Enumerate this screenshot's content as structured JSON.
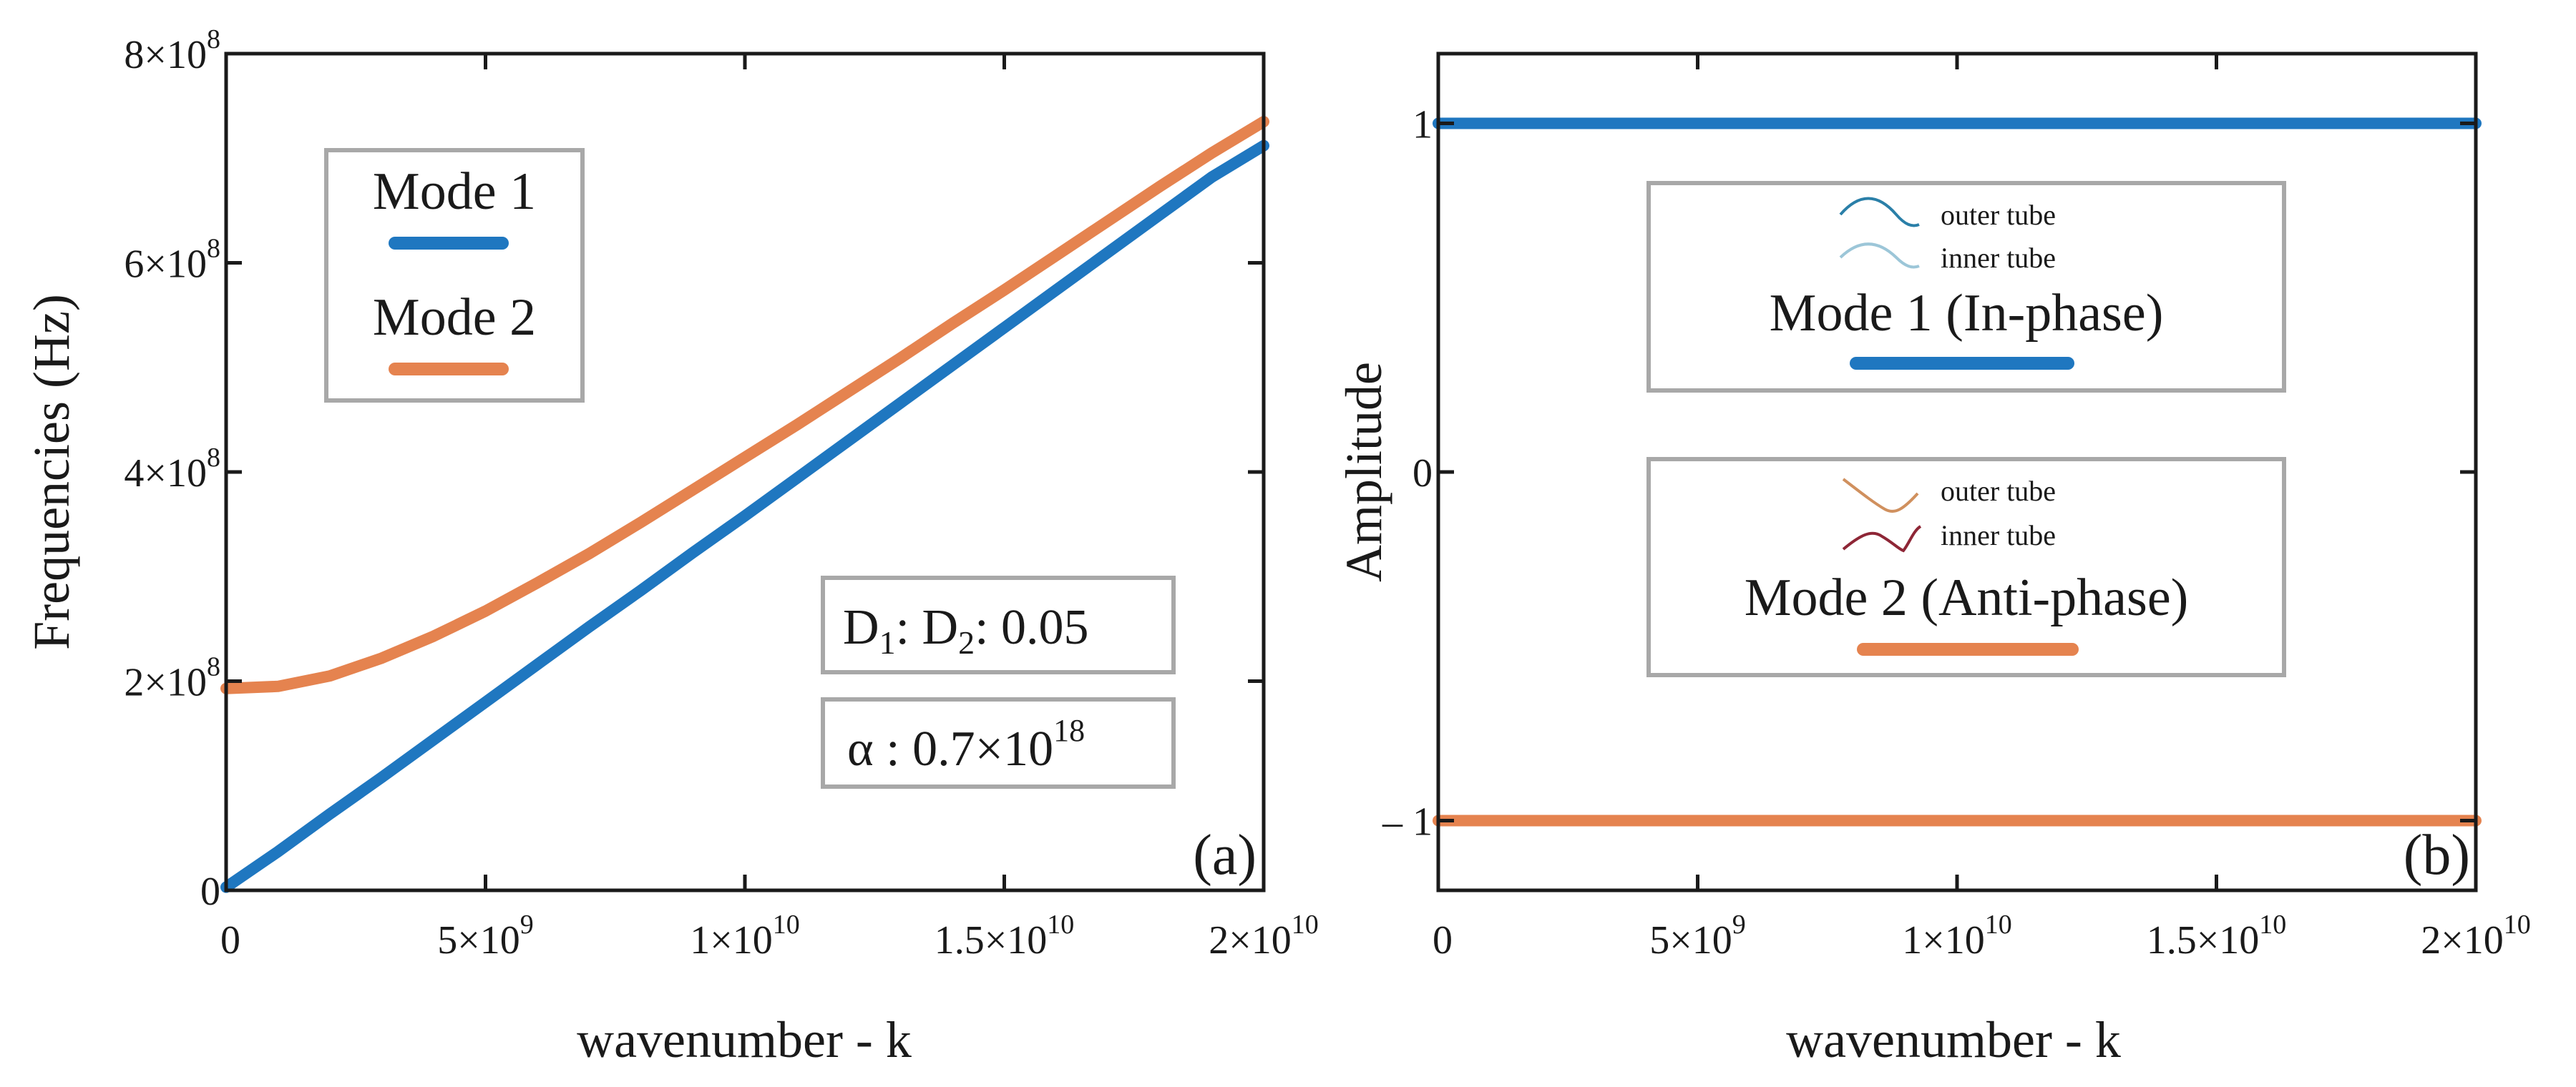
{
  "chart_data": [
    {
      "panel": "(a)",
      "type": "line",
      "xlabel": "wavenumber - k",
      "ylabel": "Frequencies (Hz)",
      "xlim": [
        0,
        20000000000
      ],
      "ylim": [
        0,
        800000000
      ],
      "x_ticks": [
        {
          "value": 0,
          "label": "0"
        },
        {
          "value": 5000000000,
          "label": "5×10",
          "exp": "9"
        },
        {
          "value": 10000000000,
          "label": "1×10",
          "exp": "10"
        },
        {
          "value": 15000000000,
          "label": "1.5×10",
          "exp": "10"
        },
        {
          "value": 20000000000,
          "label": "2×10",
          "exp": "10"
        }
      ],
      "y_ticks": [
        {
          "value": 0,
          "label": "0"
        },
        {
          "value": 200000000,
          "label": "2×10",
          "exp": "8"
        },
        {
          "value": 400000000,
          "label": "4×10",
          "exp": "8"
        },
        {
          "value": 600000000,
          "label": "6×10",
          "exp": "8"
        },
        {
          "value": 800000000,
          "label": "8×10",
          "exp": "8"
        }
      ],
      "x": [
        0,
        1000000000,
        2000000000,
        3000000000,
        4000000000,
        5000000000,
        6000000000,
        7000000000,
        8000000000,
        9000000000,
        10000000000,
        11000000000,
        12000000000,
        13000000000,
        14000000000,
        15000000000,
        16000000000,
        17000000000,
        18000000000,
        19000000000,
        20000000000
      ],
      "series": [
        {
          "name": "Mode 1",
          "color": "#1f77c0",
          "values": [
            3000000,
            37000000,
            73000000,
            108000000,
            144000000,
            180000000,
            216000000,
            252000000,
            287000000,
            323000000,
            358000000,
            394000000,
            430000000,
            466000000,
            502000000,
            538000000,
            574000000,
            610000000,
            646000000,
            682000000,
            712000000
          ]
        },
        {
          "name": "Mode 2",
          "color": "#e5834f",
          "values": [
            193000000,
            195000000,
            205000000,
            222000000,
            243000000,
            267000000,
            294000000,
            322000000,
            352000000,
            383000000,
            414000000,
            445000000,
            477000000,
            509000000,
            542000000,
            574000000,
            607000000,
            640000000,
            673000000,
            705000000,
            735000000
          ]
        }
      ],
      "legend": {
        "placement": "top-left",
        "items": [
          "Mode 1",
          "Mode 2"
        ]
      },
      "annotations": {
        "ratio": {
          "D": "D",
          "sub1": "1",
          "sep": ": D",
          "sub2": "2",
          "value": ": 0.05"
        },
        "alpha": {
          "text": "α :  0.7×10",
          "exp": "18"
        }
      }
    },
    {
      "panel": "(b)",
      "type": "line",
      "xlabel": "wavenumber - k",
      "ylabel": "Amplitude",
      "xlim": [
        0,
        20000000000
      ],
      "ylim": [
        -1.2,
        1.2
      ],
      "x_ticks": [
        {
          "value": 0,
          "label": "0"
        },
        {
          "value": 5000000000,
          "label": "5×10",
          "exp": "9"
        },
        {
          "value": 10000000000,
          "label": "1×10",
          "exp": "10"
        },
        {
          "value": 15000000000,
          "label": "1.5×10",
          "exp": "10"
        },
        {
          "value": 20000000000,
          "label": "2×10",
          "exp": "10"
        }
      ],
      "y_ticks": [
        {
          "value": 1,
          "label": "1"
        },
        {
          "value": 0,
          "label": "0"
        },
        {
          "value": -1,
          "label": "– 1"
        }
      ],
      "x": [
        0,
        20000000000
      ],
      "series": [
        {
          "name": "Mode 1 (In-phase)",
          "color": "#1f77c0",
          "values": [
            1,
            1
          ]
        },
        {
          "name": "Mode 2 (Anti-phase)",
          "color": "#e5834f",
          "values": [
            -1,
            -1
          ]
        }
      ],
      "legends": [
        {
          "title": "Mode 1  (In-phase)",
          "outer": "outer tube",
          "inner": "inner tube",
          "outer_color": "#2a7fa8",
          "inner_color": "#9cc6d8",
          "line_color": "#1f77c0"
        },
        {
          "title": "Mode 2  (Anti-phase)",
          "outer": "outer tube",
          "inner": "inner tube",
          "outer_color": "#d0905e",
          "inner_color": "#8e2636",
          "line_color": "#e5834f"
        }
      ]
    }
  ]
}
